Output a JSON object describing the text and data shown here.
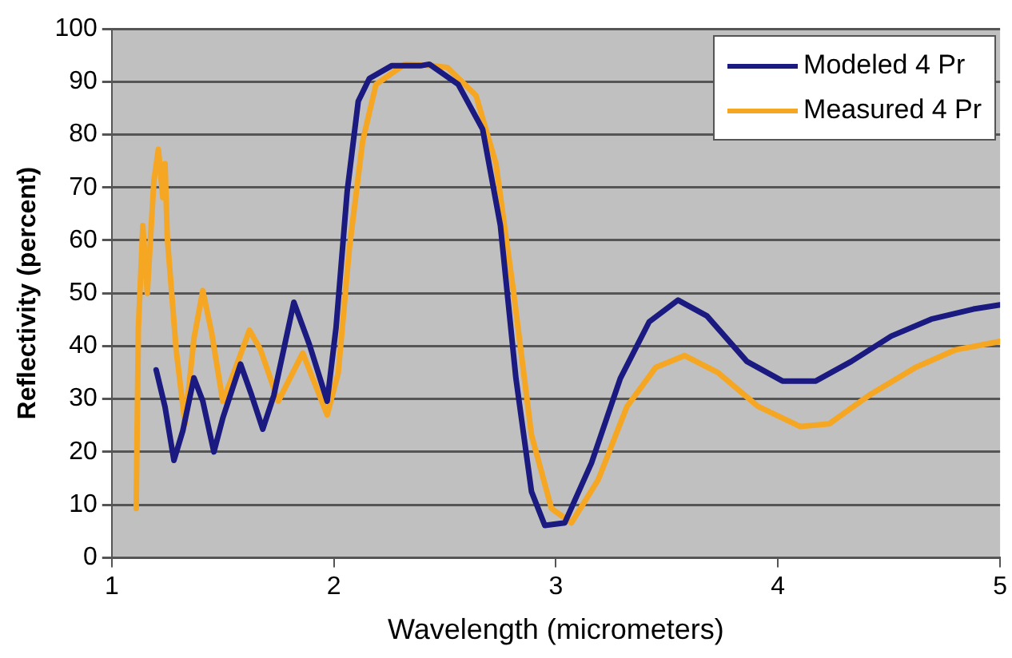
{
  "chart_data": {
    "type": "line",
    "xlabel": "Wavelength (micrometers)",
    "ylabel": "Reflectivity (percent)",
    "xlim": [
      1,
      5
    ],
    "xticks": [
      1,
      2,
      3,
      4,
      5
    ],
    "ylim": [
      0,
      100
    ],
    "yticks": [
      0,
      10,
      20,
      30,
      40,
      50,
      60,
      70,
      80,
      90,
      100
    ],
    "grid": "y",
    "legend": "top right",
    "marker": "none",
    "line_style": "solid",
    "series": [
      {
        "name": "Modeled 4 Pr",
        "color": "#1a1a80",
        "x": [
          1.2,
          1.24,
          1.28,
          1.32,
          1.37,
          1.41,
          1.46,
          1.5,
          1.58,
          1.63,
          1.68,
          1.73,
          1.82,
          1.89,
          1.97,
          2.01,
          2.06,
          2.11,
          2.16,
          2.26,
          2.39,
          2.43,
          2.56,
          2.67,
          2.75,
          2.82,
          2.89,
          2.95,
          3.04,
          3.16,
          3.29,
          3.42,
          3.55,
          3.68,
          3.86,
          4.02,
          4.17,
          4.33,
          4.51,
          4.69,
          4.88,
          5.0
        ],
        "values": [
          35.5,
          28.5,
          18.4,
          24,
          34,
          29.6,
          20,
          26.4,
          36.6,
          30.7,
          24.3,
          30.7,
          48.3,
          40.3,
          29.6,
          43.5,
          69.2,
          86.3,
          90.6,
          93,
          93,
          93.3,
          89.5,
          81,
          62.8,
          33.9,
          12.5,
          6.1,
          6.6,
          17.9,
          33.9,
          44.6,
          48.7,
          45.7,
          37.1,
          33.4,
          33.4,
          37.1,
          41.9,
          45.1,
          47,
          47.8
        ]
      },
      {
        "name": "Measured 4 Pr",
        "color": "#f5a623",
        "x": [
          1.11,
          1.12,
          1.14,
          1.16,
          1.19,
          1.21,
          1.23,
          1.24,
          1.25,
          1.29,
          1.33,
          1.37,
          1.41,
          1.45,
          1.5,
          1.55,
          1.62,
          1.67,
          1.75,
          1.86,
          1.97,
          2.02,
          2.07,
          2.13,
          2.19,
          2.32,
          2.45,
          2.51,
          2.64,
          2.73,
          2.81,
          2.89,
          2.98,
          3.07,
          3.19,
          3.32,
          3.45,
          3.58,
          3.73,
          3.91,
          4.1,
          4.23,
          4.41,
          4.62,
          4.8,
          5.0
        ],
        "values": [
          9.3,
          43.5,
          62.8,
          50,
          71.3,
          77.2,
          68.1,
          74.5,
          60.6,
          39.3,
          25.3,
          41.4,
          50.5,
          42.5,
          29.6,
          35,
          43,
          39.3,
          29.6,
          38.7,
          27,
          35,
          58.5,
          78.8,
          89.5,
          93.3,
          93,
          92.7,
          87.4,
          74.5,
          50,
          23.2,
          9.3,
          6.6,
          14.7,
          28.6,
          36,
          38.2,
          35,
          28.6,
          24.8,
          25.3,
          30.7,
          36,
          39.3,
          40.9
        ]
      }
    ]
  }
}
